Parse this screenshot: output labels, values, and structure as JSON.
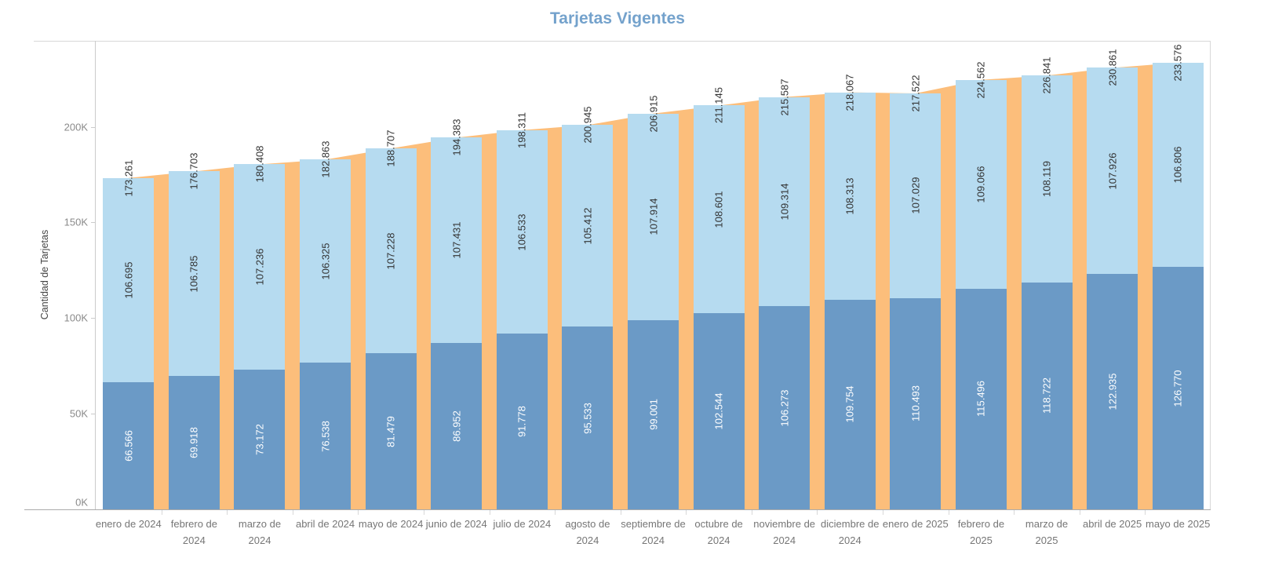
{
  "title": "Tarjetas Vigentes",
  "y_axis": {
    "title": "Cantidad de Tarjetas"
  },
  "chart_data": {
    "type": "bar",
    "stacked": true,
    "title": "Tarjetas Vigentes",
    "xlabel": "",
    "ylabel": "Cantidad de Tarjetas",
    "ylim": [
      0,
      245000
    ],
    "grid": false,
    "legend": "none",
    "categories": [
      "enero de 2024",
      "febrero de 2024",
      "marzo de 2024",
      "abril de 2024",
      "mayo de 2024",
      "junio de 2024",
      "julio de 2024",
      "agosto de 2024",
      "septiembre de 2024",
      "octubre de 2024",
      "noviembre de 2024",
      "diciembre de 2024",
      "enero de 2025",
      "febrero de 2025",
      "marzo de 2025",
      "abril de 2025",
      "mayo de 2025"
    ],
    "series": [
      {
        "name": "bottom-segment",
        "color": "#6B9AC6",
        "label_color": "#ffffff",
        "values": [
          66566,
          69918,
          73172,
          76538,
          81479,
          86952,
          91778,
          95533,
          99001,
          102544,
          106273,
          109754,
          110493,
          115496,
          118722,
          122935,
          126770
        ]
      },
      {
        "name": "top-segment",
        "color": "#B6DBF0",
        "label_color": "#333333",
        "values": [
          106695,
          106785,
          107236,
          106325,
          107228,
          107431,
          106533,
          105412,
          107914,
          108601,
          109314,
          108313,
          107029,
          109066,
          108119,
          107926,
          106806
        ]
      }
    ],
    "totals": [
      173261,
      176703,
      180408,
      182863,
      188707,
      194383,
      198311,
      200945,
      206915,
      211145,
      215587,
      218067,
      217522,
      224562,
      226841,
      230861,
      233576
    ],
    "total_area_color": "#FCBE7B",
    "y_ticks": [
      {
        "value": 0,
        "label": "0K"
      },
      {
        "value": 50000,
        "label": "50K"
      },
      {
        "value": 100000,
        "label": "100K"
      },
      {
        "value": 150000,
        "label": "150K"
      },
      {
        "value": 200000,
        "label": "200K"
      }
    ]
  },
  "colors": {
    "title": "#74A2CC",
    "tick_text": "#8A8A8A",
    "category_text": "#767676",
    "value_text": "#333333",
    "axis_line": "#ABABAB",
    "frame_line": "#D8D8D8",
    "axis_rule": "#CBCBCB"
  }
}
